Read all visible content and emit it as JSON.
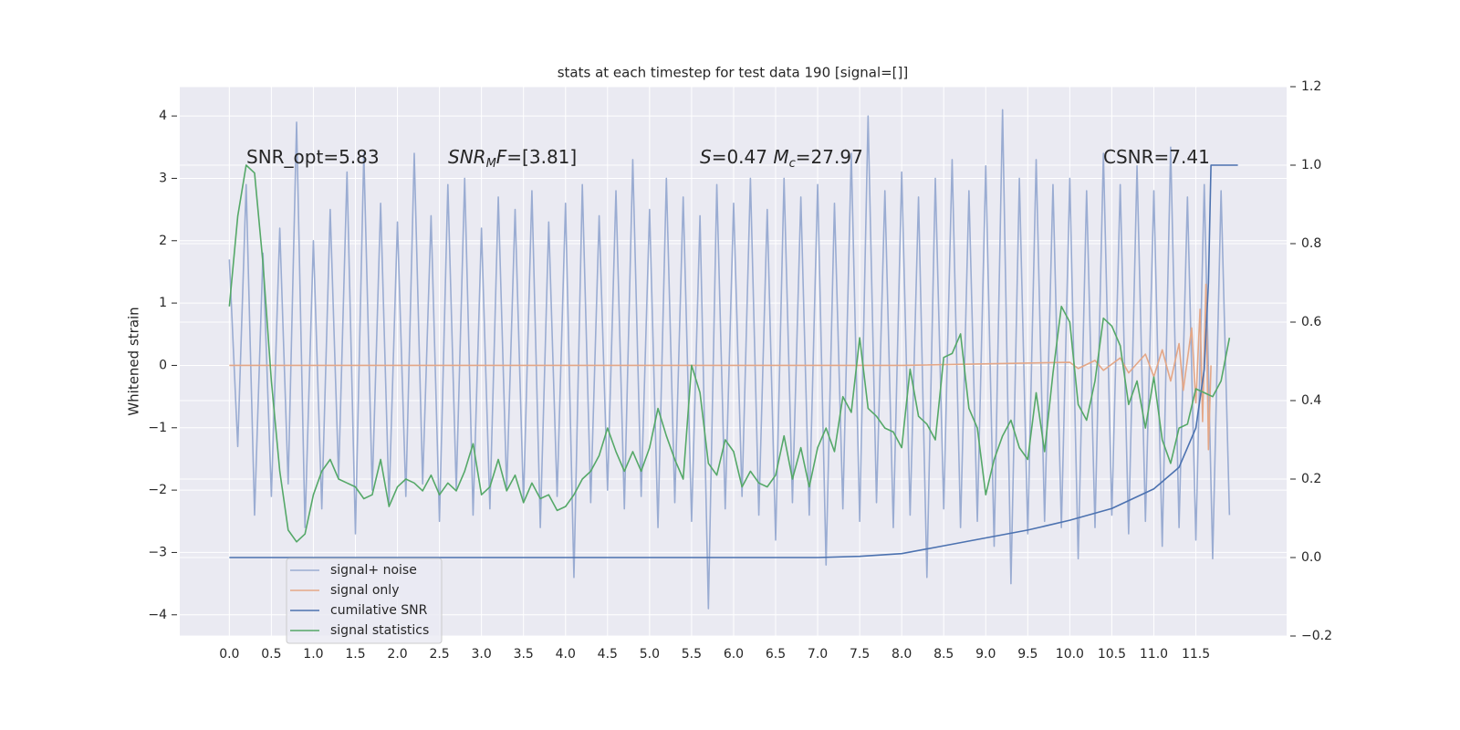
{
  "chart_data": {
    "type": "line",
    "title": "stats at each timestep for test data 190 [signal=[]]",
    "ylabel": "Whitened strain",
    "xlim": [
      -0.59,
      12.58
    ],
    "ylim": [
      -4.34,
      4.47
    ],
    "y2lim": [
      -0.2,
      1.2
    ],
    "xticks": [
      {
        "value": 0,
        "label": "0.0"
      },
      0.5,
      {
        "value": 1,
        "label": "1.0"
      },
      1.5,
      {
        "value": 2,
        "label": "2.0"
      },
      2.5,
      {
        "value": 3,
        "label": "3.0"
      },
      3.5,
      {
        "value": 4,
        "label": "4.0"
      },
      4.5,
      {
        "value": 5,
        "label": "5.0"
      },
      5.5,
      {
        "value": 6,
        "label": "6.0"
      },
      6.5,
      {
        "value": 7,
        "label": "7.0"
      },
      7.5,
      {
        "value": 8,
        "label": "8.0"
      },
      8.5,
      {
        "value": 9,
        "label": "9.0"
      },
      9.5,
      {
        "value": 10,
        "label": "10.0"
      },
      10.5,
      {
        "value": 11,
        "label": "11.0"
      },
      11.5
    ],
    "yticks": [
      {
        "value": -4,
        "label": "−4"
      },
      {
        "value": -3,
        "label": "−3"
      },
      {
        "value": -2,
        "label": "−2"
      },
      {
        "value": -1,
        "label": "−1"
      },
      0,
      1,
      2,
      3,
      4
    ],
    "y2ticks": [
      {
        "value": -0.2,
        "label": "−0.2"
      },
      {
        "value": 0,
        "label": "0.0"
      },
      0.2,
      0.4,
      0.6,
      0.8,
      {
        "value": 1,
        "label": "1.0"
      },
      1.2
    ],
    "grid": true,
    "legend_loc": "lower left",
    "annotations": [
      [
        {
          "text": "SNR_opt=5.83",
          "style": "normal"
        }
      ],
      [
        {
          "text": "SNR",
          "style": "italic"
        },
        {
          "text": "M",
          "style": "sub"
        },
        {
          "text": "F",
          "style": "italic"
        },
        {
          "text": "=[3.81]",
          "style": "normal"
        }
      ],
      [
        {
          "text": "S",
          "style": "italic"
        },
        {
          "text": "=0.47  ",
          "style": "normal"
        },
        {
          "text": "M",
          "style": "italic"
        },
        {
          "text": "c",
          "style": "sub"
        },
        {
          "text": "=27.97",
          "style": "normal"
        }
      ],
      [
        {
          "text": "CSNR=7.41",
          "style": "normal"
        }
      ]
    ],
    "x": [
      0,
      0.1,
      0.2,
      0.3,
      0.4,
      0.5,
      0.6,
      0.7,
      0.8,
      0.9,
      1,
      1.1,
      1.2,
      1.3,
      1.4,
      1.5,
      1.6,
      1.7,
      1.8,
      1.9,
      2,
      2.1,
      2.2,
      2.3,
      2.4,
      2.5,
      2.6,
      2.7,
      2.8,
      2.9,
      3,
      3.1,
      3.2,
      3.3,
      3.4,
      3.5,
      3.6,
      3.7,
      3.8,
      3.9,
      4,
      4.1,
      4.2,
      4.3,
      4.4,
      4.5,
      4.6,
      4.7,
      4.8,
      4.9,
      5,
      5.1,
      5.2,
      5.3,
      5.4,
      5.5,
      5.6,
      5.7,
      5.8,
      5.9,
      6,
      6.1,
      6.2,
      6.3,
      6.4,
      6.5,
      6.6,
      6.7,
      6.8,
      6.9,
      7,
      7.1,
      7.2,
      7.3,
      7.4,
      7.5,
      7.6,
      7.7,
      7.8,
      7.9,
      8,
      8.1,
      8.2,
      8.3,
      8.4,
      8.5,
      8.6,
      8.7,
      8.8,
      8.9,
      9,
      9.1,
      9.2,
      9.3,
      9.4,
      9.5,
      9.6,
      9.7,
      9.8,
      9.9,
      10,
      10.1,
      10.2,
      10.3,
      10.4,
      10.5,
      10.6,
      10.7,
      10.8,
      10.9,
      11,
      11.1,
      11.2,
      11.3,
      11.4,
      11.5,
      11.6,
      11.7,
      11.8,
      11.9
    ],
    "series": [
      {
        "name": "signal+ noise",
        "color": "#9aacd2",
        "values": [
          1.7,
          -1.3,
          2.9,
          -2.4,
          1.8,
          -2.1,
          2.2,
          -1.9,
          3.9,
          -2.6,
          2.0,
          -2.3,
          2.5,
          -1.8,
          3.1,
          -2.7,
          3.4,
          -2.0,
          2.6,
          -2.2,
          2.3,
          -2.1,
          3.4,
          -1.9,
          2.4,
          -2.5,
          2.9,
          -2.0,
          3.0,
          -2.4,
          2.2,
          -2.3,
          2.7,
          -2.0,
          2.5,
          -2.2,
          2.8,
          -2.6,
          2.3,
          -2.1,
          2.6,
          -3.4,
          2.9,
          -2.2,
          2.4,
          -2.0,
          2.8,
          -2.3,
          3.3,
          -2.1,
          2.5,
          -2.6,
          3.0,
          -2.2,
          2.7,
          -2.5,
          2.4,
          -3.9,
          2.9,
          -2.3,
          2.6,
          -2.1,
          3.0,
          -2.4,
          2.5,
          -2.8,
          3.0,
          -2.2,
          2.7,
          -2.4,
          2.9,
          -3.2,
          2.6,
          -2.3,
          3.4,
          -2.5,
          4.0,
          -2.2,
          2.8,
          -2.6,
          3.1,
          -2.4,
          2.7,
          -3.4,
          3.0,
          -2.3,
          3.3,
          -2.6,
          2.8,
          -2.5,
          3.2,
          -2.9,
          4.1,
          -3.5,
          3.0,
          -2.7,
          3.3,
          -2.5,
          2.9,
          -2.6,
          3.0,
          -3.1,
          2.8,
          -2.6,
          3.4,
          -2.4,
          2.9,
          -2.7,
          3.2,
          -2.5,
          2.8,
          -2.9,
          3.5,
          -2.6,
          2.7,
          -2.8,
          2.9,
          -3.1,
          2.8,
          -2.4
        ]
      },
      {
        "name": "signal only",
        "color": "#e4a787",
        "x": [
          0,
          8,
          10,
          10.1,
          10.3,
          10.4,
          10.6,
          10.7,
          10.9,
          11,
          11.1,
          11.2,
          11.3,
          11.35,
          11.45,
          11.5,
          11.55,
          11.58,
          11.62,
          11.65,
          11.68
        ],
        "values": [
          0,
          0,
          0.05,
          -0.05,
          0.08,
          -0.08,
          0.12,
          -0.12,
          0.18,
          -0.18,
          0.25,
          -0.25,
          0.35,
          -0.4,
          0.6,
          -0.6,
          0.9,
          -0.9,
          1.3,
          -1.35,
          0
        ]
      },
      {
        "name": "cumilative SNR",
        "color": "#4c72b0",
        "axis": "y2",
        "x": [
          0,
          7,
          7.5,
          8,
          8.5,
          9,
          9.5,
          10,
          10.5,
          11,
          11.3,
          11.5,
          11.6,
          11.65,
          11.68,
          12
        ],
        "values": [
          0,
          0,
          0.003,
          0.01,
          0.03,
          0.05,
          0.07,
          0.095,
          0.125,
          0.175,
          0.23,
          0.33,
          0.48,
          0.7,
          1,
          1
        ]
      },
      {
        "name": "signal statistics",
        "color": "#55a868",
        "axis": "y2",
        "values": [
          0.64,
          0.87,
          1.0,
          0.98,
          0.75,
          0.45,
          0.22,
          0.07,
          0.04,
          0.06,
          0.16,
          0.22,
          0.25,
          0.2,
          0.19,
          0.18,
          0.15,
          0.16,
          0.25,
          0.13,
          0.18,
          0.2,
          0.19,
          0.17,
          0.21,
          0.16,
          0.19,
          0.17,
          0.22,
          0.29,
          0.16,
          0.18,
          0.25,
          0.17,
          0.21,
          0.14,
          0.19,
          0.15,
          0.16,
          0.12,
          0.13,
          0.16,
          0.2,
          0.22,
          0.26,
          0.33,
          0.27,
          0.22,
          0.27,
          0.22,
          0.28,
          0.38,
          0.31,
          0.25,
          0.2,
          0.49,
          0.42,
          0.24,
          0.21,
          0.3,
          0.27,
          0.18,
          0.22,
          0.19,
          0.18,
          0.21,
          0.31,
          0.2,
          0.28,
          0.18,
          0.28,
          0.33,
          0.27,
          0.41,
          0.37,
          0.56,
          0.38,
          0.36,
          0.33,
          0.32,
          0.28,
          0.48,
          0.36,
          0.34,
          0.3,
          0.51,
          0.52,
          0.57,
          0.38,
          0.33,
          0.16,
          0.25,
          0.31,
          0.35,
          0.28,
          0.25,
          0.42,
          0.27,
          0.47,
          0.64,
          0.6,
          0.39,
          0.35,
          0.45,
          0.61,
          0.59,
          0.54,
          0.39,
          0.45,
          0.33,
          0.46,
          0.3,
          0.24,
          0.33,
          0.34,
          0.43,
          0.42,
          0.41,
          0.45,
          0.56
        ]
      }
    ]
  }
}
